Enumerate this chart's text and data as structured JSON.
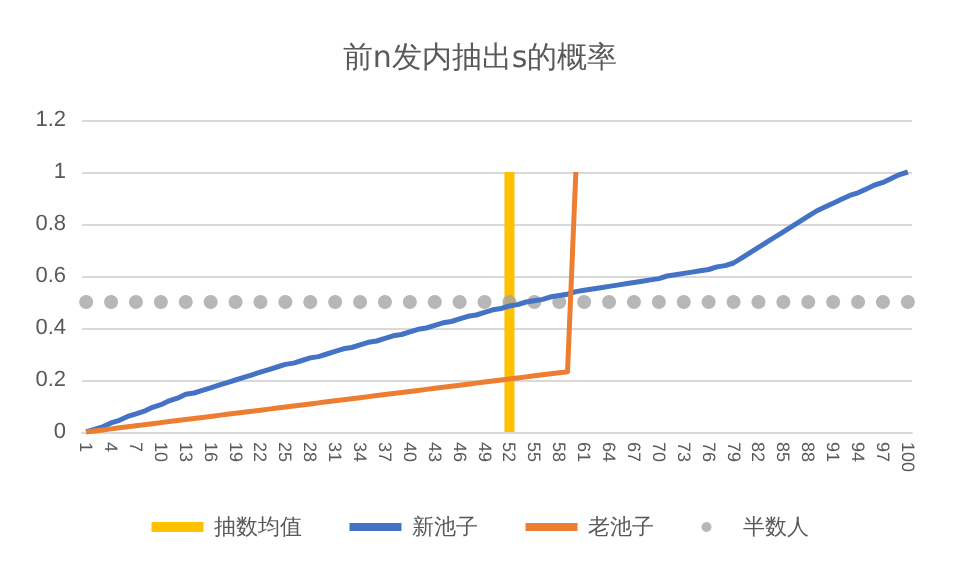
{
  "chart_data": {
    "type": "line",
    "title": "前n发内抽出s的概率",
    "categories": [
      "1",
      null,
      null,
      "4",
      null,
      null,
      "7",
      null,
      null,
      "10",
      null,
      null,
      "13",
      null,
      null,
      "16",
      null,
      null,
      "19",
      null,
      null,
      "22",
      null,
      null,
      "25",
      null,
      null,
      "28",
      null,
      null,
      "31",
      null,
      null,
      "34",
      null,
      null,
      "37",
      null,
      null,
      "40",
      null,
      null,
      "43",
      null,
      null,
      "46",
      null,
      null,
      "49",
      null,
      null,
      "52",
      null,
      null,
      "55",
      null,
      null,
      "58",
      null,
      null,
      "61",
      null,
      null,
      "64",
      null,
      null,
      "67",
      null,
      null,
      "70",
      null,
      null,
      "73",
      null,
      null,
      "76",
      null,
      null,
      "79",
      null,
      null,
      "82",
      null,
      null,
      "85",
      null,
      null,
      "88",
      null,
      null,
      "91",
      null,
      null,
      "94",
      null,
      null,
      "97",
      null,
      null,
      "100"
    ],
    "series": [
      {
        "name": "抽数均值",
        "type": "bar",
        "color": "#ffc000",
        "values": [
          null,
          null,
          null,
          null,
          null,
          null,
          null,
          null,
          null,
          null,
          null,
          null,
          null,
          null,
          null,
          null,
          null,
          null,
          null,
          null,
          null,
          null,
          null,
          null,
          null,
          null,
          null,
          null,
          null,
          null,
          null,
          null,
          null,
          null,
          null,
          null,
          null,
          null,
          null,
          null,
          null,
          null,
          null,
          null,
          null,
          null,
          null,
          null,
          null,
          null,
          null,
          1,
          null,
          null,
          null,
          null,
          null,
          null,
          null,
          null,
          null,
          null,
          null,
          null,
          null,
          null,
          null,
          null,
          null,
          null,
          null,
          null,
          null,
          null,
          null,
          null,
          null,
          null,
          null,
          null,
          null,
          null,
          null,
          null,
          null,
          null,
          null,
          null,
          null,
          null,
          null,
          null,
          null,
          null,
          null,
          null,
          null,
          null,
          null,
          null
        ]
      },
      {
        "name": "新池子",
        "color": "#4472c4",
        "values": [
          0,
          0.01,
          0.02,
          0.035,
          0.045,
          0.06,
          0.07,
          0.08,
          0.095,
          0.105,
          0.12,
          0.13,
          0.145,
          0.15,
          0.16,
          0.17,
          0.18,
          0.19,
          0.2,
          0.21,
          0.22,
          0.23,
          0.24,
          0.25,
          0.26,
          0.265,
          0.275,
          0.285,
          0.29,
          0.3,
          0.31,
          0.32,
          0.325,
          0.335,
          0.345,
          0.35,
          0.36,
          0.37,
          0.375,
          0.385,
          0.395,
          0.4,
          0.41,
          0.42,
          0.425,
          0.435,
          0.445,
          0.45,
          0.46,
          0.47,
          0.475,
          0.485,
          0.49,
          0.5,
          0.505,
          0.51,
          0.52,
          0.525,
          0.53,
          0.54,
          0.545,
          0.55,
          0.555,
          0.56,
          0.565,
          0.57,
          0.575,
          0.58,
          0.585,
          0.59,
          0.6,
          0.605,
          0.61,
          0.615,
          0.62,
          0.625,
          0.635,
          0.64,
          0.65,
          0.67,
          0.69,
          0.71,
          0.73,
          0.75,
          0.77,
          0.79,
          0.81,
          0.83,
          0.85,
          0.865,
          0.88,
          0.895,
          0.91,
          0.92,
          0.935,
          0.95,
          0.96,
          0.975,
          0.99,
          1
        ]
      },
      {
        "name": "老池子",
        "color": "#ed7d31",
        "values": [
          0,
          0.004,
          0.008,
          0.012,
          0.016,
          0.02,
          0.024,
          0.028,
          0.032,
          0.036,
          0.04,
          0.044,
          0.048,
          0.052,
          0.056,
          0.06,
          0.064,
          0.068,
          0.072,
          0.076,
          0.08,
          0.084,
          0.088,
          0.092,
          0.096,
          0.1,
          0.104,
          0.108,
          0.112,
          0.116,
          0.12,
          0.124,
          0.128,
          0.132,
          0.136,
          0.14,
          0.144,
          0.148,
          0.152,
          0.156,
          0.16,
          0.164,
          0.168,
          0.172,
          0.176,
          0.18,
          0.184,
          0.188,
          0.192,
          0.196,
          0.2,
          0.204,
          0.208,
          0.212,
          0.216,
          0.22,
          0.224,
          0.228,
          0.232,
          1,
          null,
          null,
          null,
          null,
          null,
          null,
          null,
          null,
          null,
          null,
          null,
          null,
          null,
          null,
          null,
          null,
          null,
          null,
          null,
          null,
          null,
          null,
          null,
          null,
          null,
          null,
          null,
          null,
          null,
          null,
          null,
          null,
          null,
          null,
          null,
          null,
          null,
          null,
          null,
          null
        ]
      },
      {
        "name": "半数人",
        "type": "scatter",
        "color": "#a5a5a5",
        "values": [
          0.5,
          null,
          null,
          0.5,
          null,
          null,
          0.5,
          null,
          null,
          0.5,
          null,
          null,
          0.5,
          null,
          null,
          0.5,
          null,
          null,
          0.5,
          null,
          null,
          0.5,
          null,
          null,
          0.5,
          null,
          null,
          0.5,
          null,
          null,
          0.5,
          null,
          null,
          0.5,
          null,
          null,
          0.5,
          null,
          null,
          0.5,
          null,
          null,
          0.5,
          null,
          null,
          0.5,
          null,
          null,
          0.5,
          null,
          null,
          0.5,
          null,
          null,
          0.5,
          null,
          null,
          0.5,
          null,
          null,
          0.5,
          null,
          null,
          0.5,
          null,
          null,
          0.5,
          null,
          null,
          0.5,
          null,
          null,
          0.5,
          null,
          null,
          0.5,
          null,
          null,
          0.5,
          null,
          null,
          0.5,
          null,
          null,
          0.5,
          null,
          null,
          0.5,
          null,
          null,
          0.5,
          null,
          null,
          0.5,
          null,
          null,
          0.5,
          null,
          null,
          0.5
        ]
      }
    ],
    "ylim": [
      0,
      1.2
    ],
    "yticks": [
      0,
      0.2,
      0.4,
      0.6,
      0.8,
      1,
      1.2
    ],
    "grid": "y",
    "legend": "bottom"
  }
}
